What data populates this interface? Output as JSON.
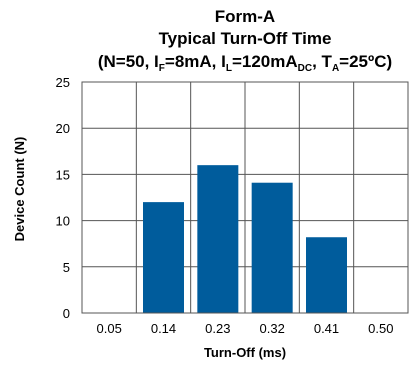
{
  "chart_data": {
    "type": "bar",
    "title_lines": [
      "Form-A",
      "Typical Turn-Off Time"
    ],
    "conditions": {
      "open": "(N=50, I",
      "if_sub": "F",
      "if_val": "=8mA, I",
      "il_sub": "L",
      "il_val": "=120mA",
      "dc_sub": "DC",
      "ta_pre": ", T",
      "ta_sub": "A",
      "ta_val": "=25ºC)"
    },
    "xlabel": "Turn-Off (ms)",
    "ylabel": "Device Count (N)",
    "categories": [
      "0.05",
      "0.14",
      "0.23",
      "0.32",
      "0.41",
      "0.50"
    ],
    "values": [
      0,
      12,
      16,
      14.1,
      8.2,
      0
    ],
    "ylim": [
      0,
      25
    ],
    "yticks": [
      0,
      5,
      10,
      15,
      20,
      25
    ],
    "grid": true,
    "bar_color": "#005c9c",
    "grid_color": "#555555"
  }
}
